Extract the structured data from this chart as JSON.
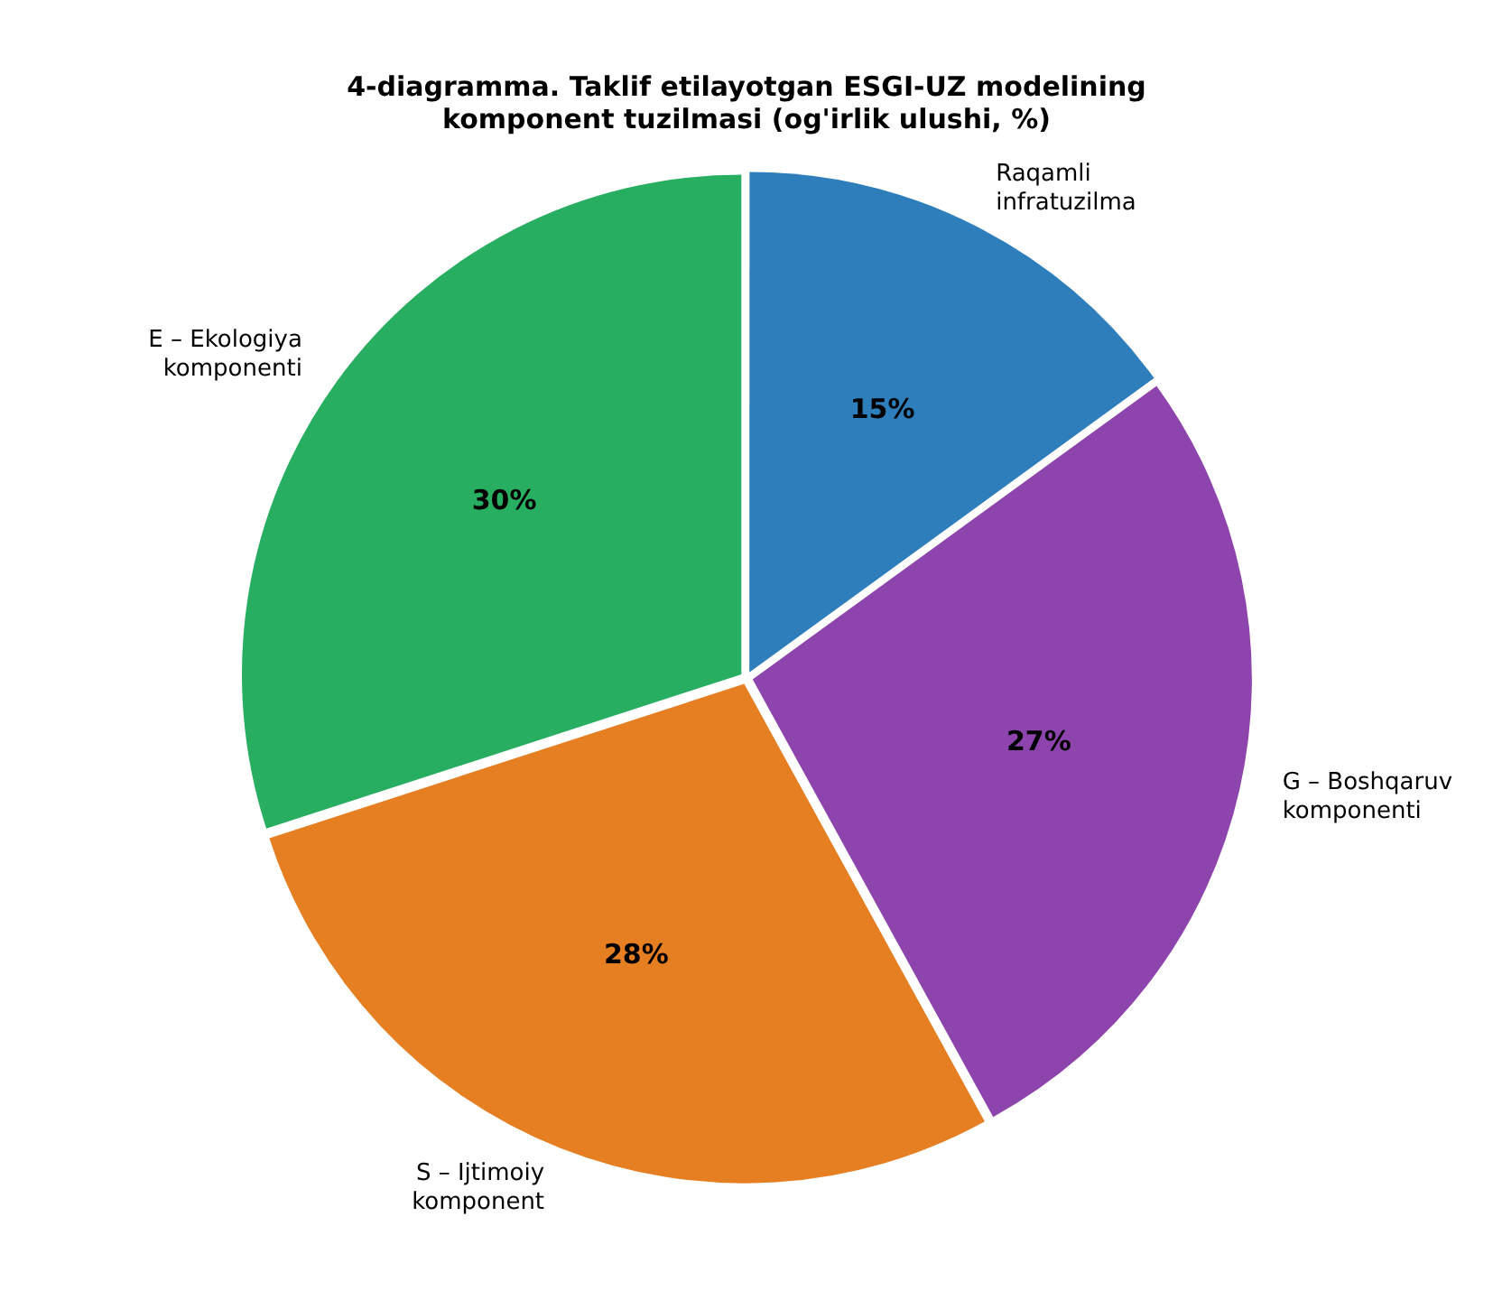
{
  "chart_data": {
    "type": "pie",
    "title": "4-diagramma. Taklif etilayotgan ESGI-UZ modelining\nkomponent tuzilmasi (og'irlik ulushi, %)",
    "categories": [
      "Raqamli\ninfratuzilma",
      "G – Boshqaruv\nkomponenti",
      "S – Ijtimoiy\nkomponent",
      "E – Ekologiya\nkomponenti"
    ],
    "values": [
      15,
      27,
      28,
      30
    ],
    "colors": [
      "#2e7ebc",
      "#8e44ad",
      "#e67e22",
      "#27ae60"
    ],
    "value_labels": [
      "15%",
      "27%",
      "28%",
      "30%"
    ],
    "legend": false
  }
}
